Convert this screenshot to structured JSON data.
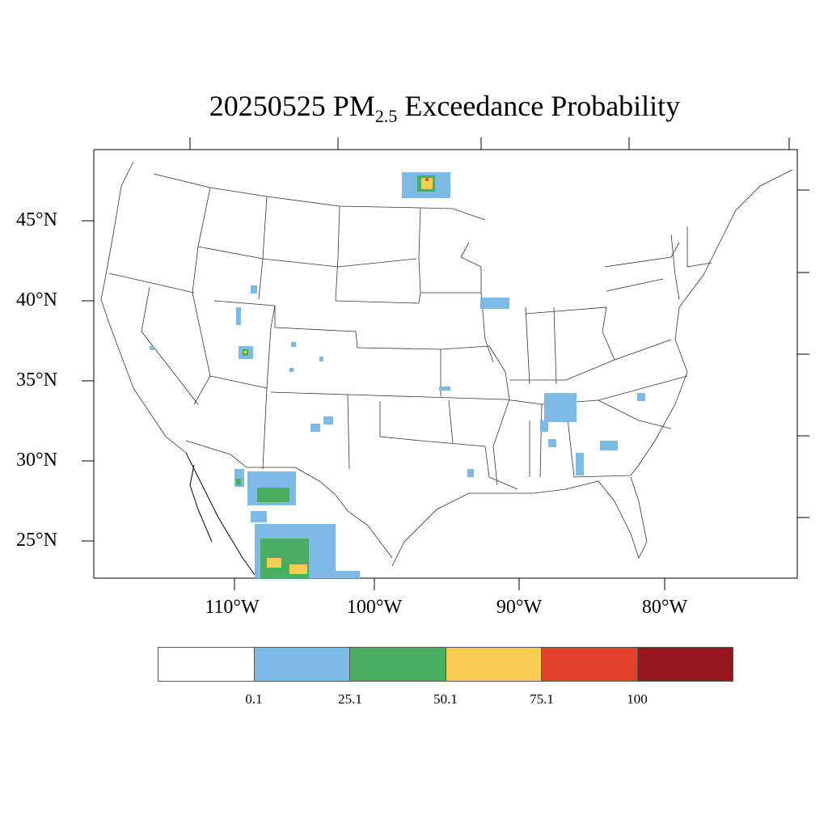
{
  "title": {
    "prefix": "20250525 PM",
    "subscript": "2.5",
    "suffix": " Exceedance Probability"
  },
  "lat_labels": [
    "45°N",
    "40°N",
    "35°N",
    "30°N",
    "25°N"
  ],
  "lon_labels": [
    "110°W",
    "100°W",
    "90°W",
    "80°W"
  ],
  "colorbar": {
    "colors": [
      "#ffffff",
      "#7dbbe6",
      "#4aae62",
      "#f8ce52",
      "#e2422a",
      "#95171d"
    ],
    "labels": [
      "0.1",
      "25.1",
      "50.1",
      "75.1",
      "100"
    ]
  },
  "map": {
    "basemap": "CONUS state boundaries and coastlines",
    "probability_regions": [
      {
        "area": "Minnesota / Lake of the Woods",
        "levels": [
          "0.1-25.1",
          "25.1-50.1",
          "50.1-75.1",
          "75.1-100"
        ]
      },
      {
        "area": "Northern Illinois",
        "levels": [
          "0.1-25.1"
        ]
      },
      {
        "area": "Southern Utah",
        "levels": [
          "0.1-25.1",
          "25.1-50.1",
          "50.1-75.1"
        ]
      },
      {
        "area": "Idaho / Utah",
        "levels": [
          "0.1-25.1"
        ]
      },
      {
        "area": "Colorado",
        "levels": [
          "0.1-25.1"
        ]
      },
      {
        "area": "New Mexico",
        "levels": [
          "0.1-25.1"
        ]
      },
      {
        "area": "Tennessee / Alabama",
        "levels": [
          "0.1-25.1"
        ]
      },
      {
        "area": "Georgia",
        "levels": [
          "0.1-25.1"
        ]
      },
      {
        "area": "Louisiana",
        "levels": [
          "0.1-25.1"
        ]
      },
      {
        "area": "Northwest Mexico",
        "levels": [
          "0.1-25.1",
          "25.1-50.1",
          "50.1-75.1"
        ]
      }
    ]
  }
}
